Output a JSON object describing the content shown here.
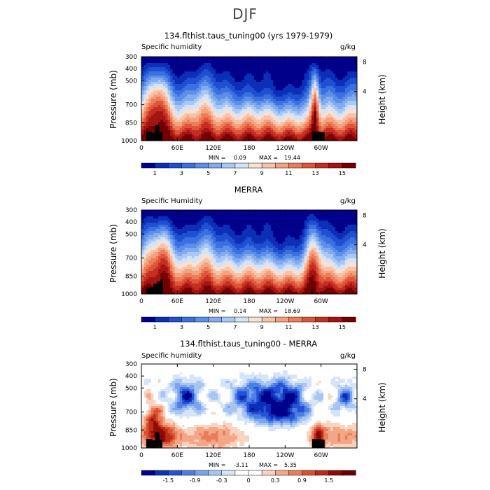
{
  "title": "DJF",
  "chart_data": [
    {
      "type": "heatmap",
      "title": "134.flthist.taus_tuning00 (yrs 1979-1979)",
      "left_label": "Specific humidity",
      "right_label": "g/kg",
      "ylabel": "Pressure (mb)",
      "ylabel_right": "Height (km)",
      "x_ticks": [
        "0",
        "60E",
        "120E",
        "180",
        "120W",
        "60W"
      ],
      "x_tick_lon": [
        0,
        60,
        120,
        180,
        240,
        300
      ],
      "xlim": [
        0,
        360
      ],
      "y_ticks": [
        "300",
        "400",
        "500",
        "700",
        "850",
        "1000"
      ],
      "y_tick_values": [
        300,
        400,
        500,
        700,
        850,
        1000
      ],
      "ylim": [
        300,
        1000
      ],
      "right_ticks": [
        "8",
        "4"
      ],
      "right_tick_km": [
        8,
        4
      ],
      "min_label": "MIN =",
      "min_value": "0.09",
      "max_label": "MAX =",
      "max_value": "19.44",
      "colorbar_labels": [
        "1",
        "3",
        "5",
        "7",
        "9",
        "11",
        "13",
        "15"
      ],
      "colorbar_colors": [
        "#00008b",
        "#0c2fb7",
        "#1f50d1",
        "#3b70e0",
        "#5b8fe8",
        "#82acef",
        "#abc8f4",
        "#d3e3f8",
        "#f7e0d4",
        "#f6c2a8",
        "#f3a27d",
        "#ec7d58",
        "#df553a",
        "#c72e22",
        "#a31412",
        "#730000"
      ],
      "scale": "sequential",
      "scale_range": [
        0,
        16
      ],
      "ridges": [
        {
          "lon": 27,
          "width": 14,
          "strength": 1.0
        },
        {
          "lon": 100,
          "width": 10,
          "strength": 0.35
        },
        {
          "lon": 250,
          "width": 45,
          "strength": -0.25
        },
        {
          "lon": 290,
          "width": 5,
          "strength": 1.2
        }
      ],
      "topography": [
        {
          "lon0": 8,
          "lon1": 18,
          "p_top": 925
        },
        {
          "lon0": 18,
          "lon1": 23,
          "p_top": 935
        },
        {
          "lon0": 23,
          "lon1": 30,
          "p_top": 870
        },
        {
          "lon0": 30,
          "lon1": 35,
          "p_top": 930
        },
        {
          "lon0": 285,
          "lon1": 300,
          "p_top": 925
        },
        {
          "lon0": 300,
          "lon1": 306,
          "p_top": 930
        }
      ]
    },
    {
      "type": "heatmap",
      "title": "MERRA",
      "left_label": "Specific Humidity",
      "right_label": "g/kg",
      "ylabel": "Pressure (mb)",
      "ylabel_right": "Height (km)",
      "x_ticks": [
        "0",
        "60E",
        "120E",
        "180",
        "120W",
        "60W"
      ],
      "x_tick_lon": [
        0,
        60,
        120,
        180,
        240,
        300
      ],
      "xlim": [
        0,
        360
      ],
      "y_ticks": [
        "300",
        "400",
        "500",
        "700",
        "850",
        "1000"
      ],
      "y_tick_values": [
        300,
        400,
        500,
        700,
        850,
        1000
      ],
      "ylim": [
        300,
        1000
      ],
      "right_ticks": [
        "8",
        "4"
      ],
      "right_tick_km": [
        8,
        4
      ],
      "min_label": "MIN =",
      "min_value": "0.14",
      "max_label": "MAX =",
      "max_value": "18.69",
      "colorbar_labels": [
        "1",
        "3",
        "5",
        "7",
        "9",
        "11",
        "13",
        "15"
      ],
      "colorbar_colors": [
        "#00008b",
        "#0c2fb7",
        "#1f50d1",
        "#3b70e0",
        "#5b8fe8",
        "#82acef",
        "#abc8f4",
        "#d3e3f8",
        "#f7e0d4",
        "#f6c2a8",
        "#f3a27d",
        "#ec7d58",
        "#df553a",
        "#c72e22",
        "#a31412",
        "#730000"
      ],
      "scale": "sequential",
      "scale_range": [
        0,
        16
      ],
      "ridges": [
        {
          "lon": 32,
          "width": 16,
          "strength": 0.9
        },
        {
          "lon": 100,
          "width": 12,
          "strength": 0.3
        },
        {
          "lon": 250,
          "width": 45,
          "strength": -0.2
        },
        {
          "lon": 288,
          "width": 10,
          "strength": 0.9
        }
      ],
      "topography": [
        {
          "lon0": 8,
          "lon1": 20,
          "p_top": 945
        },
        {
          "lon0": 20,
          "lon1": 26,
          "p_top": 915
        },
        {
          "lon0": 26,
          "lon1": 32,
          "p_top": 895
        },
        {
          "lon0": 32,
          "lon1": 36,
          "p_top": 880
        },
        {
          "lon0": 284,
          "lon1": 287,
          "p_top": 960
        }
      ]
    },
    {
      "type": "heatmap",
      "title": "134.flthist.taus_tuning00 - MERRA",
      "left_label": "Specific humidity",
      "right_label": "g/kg",
      "ylabel": "Pressure (mb)",
      "ylabel_right": "Height (km)",
      "x_ticks": [
        "0",
        "60E",
        "120E",
        "180",
        "120W",
        "60W"
      ],
      "x_tick_lon": [
        0,
        60,
        120,
        180,
        240,
        300
      ],
      "xlim": [
        0,
        360
      ],
      "y_ticks": [
        "300",
        "400",
        "500",
        "700",
        "850",
        "1000"
      ],
      "y_tick_values": [
        300,
        400,
        500,
        700,
        850,
        1000
      ],
      "ylim": [
        300,
        1000
      ],
      "right_ticks": [
        "8",
        "4"
      ],
      "right_tick_km": [
        8,
        4
      ],
      "min_label": "MIN =",
      "min_value": "-3.11",
      "max_label": "MAX =",
      "max_value": "5.35",
      "colorbar_labels": [
        "-1.5",
        "-0.9",
        "-0.3",
        "0",
        "0.3",
        "0.9",
        "1.5"
      ],
      "colorbar_colors": [
        "#00008b",
        "#0c2fb7",
        "#2552d6",
        "#4d7ee3",
        "#7aa4ec",
        "#a7c5f3",
        "#d5e4f8",
        "#ffffff",
        "#ffffff",
        "#f8d3c0",
        "#f3a786",
        "#ea7d58",
        "#d9502f",
        "#bf2a16",
        "#8c0c06",
        "#6e0000"
      ],
      "scale": "diverging",
      "scale_range": [
        -2.1,
        2.1
      ],
      "topography": [
        {
          "lon0": 8,
          "lon1": 18,
          "p_top": 925
        },
        {
          "lon0": 18,
          "lon1": 23,
          "p_top": 935
        },
        {
          "lon0": 23,
          "lon1": 30,
          "p_top": 870
        },
        {
          "lon0": 30,
          "lon1": 35,
          "p_top": 930
        },
        {
          "lon0": 285,
          "lon1": 300,
          "p_top": 925
        },
        {
          "lon0": 300,
          "lon1": 306,
          "p_top": 930
        }
      ]
    }
  ]
}
